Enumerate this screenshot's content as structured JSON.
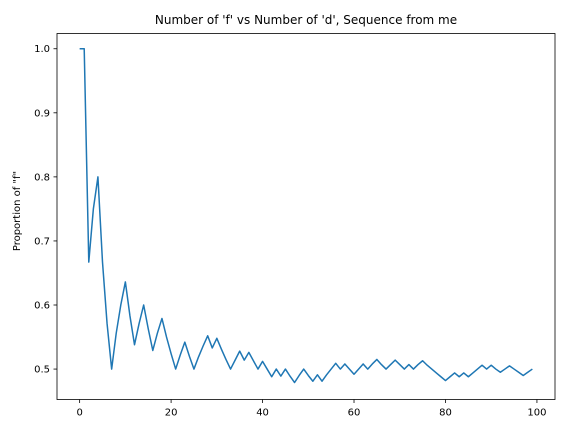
{
  "chart_data": {
    "type": "line",
    "title": "Number of 'f' vs Number of 'd', Sequence from me",
    "xlabel": "",
    "ylabel": "Proportion of \"f\"",
    "xlim": [
      -4.95,
      103.95
    ],
    "ylim": [
      0.4525,
      1.0238
    ],
    "xticks": [
      0,
      20,
      40,
      60,
      80,
      100
    ],
    "yticks": [
      0.5,
      0.6,
      0.7,
      0.8,
      0.9,
      1.0
    ],
    "xtick_labels": [
      "0",
      "20",
      "40",
      "60",
      "80",
      "100"
    ],
    "ytick_labels": [
      "0.5",
      "0.6",
      "0.7",
      "0.8",
      "0.9",
      "1.0"
    ],
    "grid": false,
    "series": [
      {
        "color": "#1f77b4",
        "x": [
          0,
          1,
          2,
          3,
          4,
          5,
          6,
          7,
          8,
          9,
          10,
          11,
          12,
          13,
          14,
          15,
          16,
          17,
          18,
          19,
          20,
          21,
          22,
          23,
          24,
          25,
          26,
          27,
          28,
          29,
          30,
          31,
          32,
          33,
          34,
          35,
          36,
          37,
          38,
          39,
          40,
          41,
          42,
          43,
          44,
          45,
          46,
          47,
          48,
          49,
          50,
          51,
          52,
          53,
          54,
          55,
          56,
          57,
          58,
          59,
          60,
          61,
          62,
          63,
          64,
          65,
          66,
          67,
          68,
          69,
          70,
          71,
          72,
          73,
          74,
          75,
          76,
          77,
          78,
          79,
          80,
          81,
          82,
          83,
          84,
          85,
          86,
          87,
          88,
          89,
          90,
          91,
          92,
          93,
          94,
          95,
          96,
          97,
          98,
          99
        ],
        "y": [
          1.0,
          1.0,
          0.667,
          0.75,
          0.8,
          0.667,
          0.571,
          0.5,
          0.556,
          0.6,
          0.636,
          0.583,
          0.538,
          0.571,
          0.6,
          0.563,
          0.529,
          0.556,
          0.579,
          0.55,
          0.524,
          0.5,
          0.522,
          0.542,
          0.52,
          0.5,
          0.519,
          0.536,
          0.552,
          0.533,
          0.548,
          0.531,
          0.515,
          0.5,
          0.514,
          0.528,
          0.514,
          0.526,
          0.513,
          0.5,
          0.512,
          0.5,
          0.488,
          0.5,
          0.489,
          0.5,
          0.489,
          0.479,
          0.49,
          0.5,
          0.49,
          0.481,
          0.491,
          0.481,
          0.491,
          0.5,
          0.509,
          0.5,
          0.508,
          0.5,
          0.492,
          0.5,
          0.508,
          0.5,
          0.508,
          0.515,
          0.507,
          0.5,
          0.507,
          0.514,
          0.507,
          0.5,
          0.507,
          0.5,
          0.507,
          0.513,
          0.506,
          0.5,
          0.494,
          0.488,
          0.482,
          0.488,
          0.494,
          0.488,
          0.494,
          0.488,
          0.494,
          0.5,
          0.506,
          0.5,
          0.506,
          0.5,
          0.495,
          0.5,
          0.505,
          0.5,
          0.495,
          0.49,
          0.495,
          0.5
        ]
      }
    ]
  }
}
